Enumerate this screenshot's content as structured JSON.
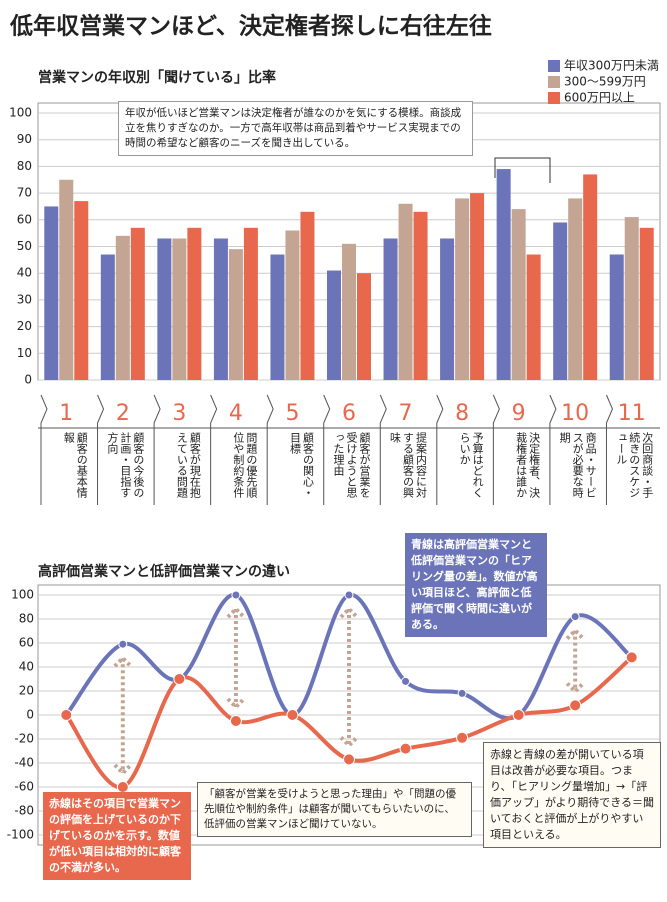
{
  "title": "低年収営業マンほど、決定権者探しに右往左往",
  "chart_data": [
    {
      "type": "bar",
      "title": "営業マンの年収別「聞けている」比率",
      "categories": [
        1,
        2,
        3,
        4,
        5,
        6,
        7,
        8,
        9,
        10,
        11
      ],
      "category_descriptions": [
        "顧客の基本情報",
        "顧客の今後の計画・目指す方向",
        "顧客が現在抱えている問題",
        "問題の優先順位や制約条件",
        "顧客の関心・目標",
        "顧客が営業を受けようと思った理由",
        "提案内容に対する顧客の興味",
        "予算はどれくらいか",
        "決定権者、決裁権者は誰か",
        "商品・サービスが必要な時期",
        "次回商談・手続きのスケジュール"
      ],
      "series": [
        {
          "name": "年収300万円未満",
          "color": "#6b74b8",
          "values": [
            65,
            47,
            53,
            53,
            47,
            41,
            53,
            53,
            79,
            59,
            47
          ]
        },
        {
          "name": "300～599万円",
          "color": "#c4a493",
          "values": [
            75,
            54,
            53,
            49,
            56,
            51,
            66,
            68,
            64,
            68,
            61
          ]
        },
        {
          "name": "600万円以上",
          "color": "#e8684e",
          "values": [
            67,
            57,
            57,
            57,
            63,
            40,
            63,
            70,
            47,
            77,
            57
          ]
        }
      ],
      "ylim": [
        0,
        100
      ],
      "yticks": [
        0,
        10,
        20,
        30,
        40,
        50,
        60,
        70,
        80,
        90,
        100
      ],
      "grid": true,
      "legend": "top-right",
      "annotations": [
        "年収が低いほど営業マンは決定権者が誰なのかを気にする模様。商談成立を焦りすぎなのか。一方で高年収帯は商品到着やサービス実現までの時間の希望など顧客のニーズを聞き出している。"
      ]
    },
    {
      "type": "line",
      "title": "高評価営業マンと低評価営業マンの違い",
      "x": [
        1,
        2,
        3,
        4,
        5,
        6,
        7,
        8,
        9,
        10,
        11
      ],
      "xlim": [
        0.5,
        11.5
      ],
      "series": [
        {
          "color": "#6b74b8",
          "values": [
            0,
            59,
            30,
            100,
            0,
            100,
            28,
            18,
            0,
            82,
            48
          ]
        },
        {
          "color": "#e8684e",
          "values": [
            0,
            -60,
            30,
            -5,
            0,
            -37,
            -28,
            -19,
            0,
            8,
            48
          ]
        }
      ],
      "ylim": [
        -100,
        100
      ],
      "yticks": [
        -100,
        -80,
        -60,
        -40,
        -20,
        0,
        20,
        40,
        60,
        80,
        100
      ],
      "grid": true,
      "annotations": [
        "青線は高評価営業マンと低評価営業マンの「ヒアリング量の差」。数値が高い項目ほど、高評価と低評価で聞く時間に違いがある。",
        "赤線はその項目で営業マンの評価を上げているのか下げているのかを示す。数値が低い項目は相対的に顧客の不満が多い。",
        "「顧客が営業を受けようと思った理由」や「問題の優先順位や制約条件」は顧客が聞いてもらいたいのに、低評価の営業マンほど聞けていない。",
        "赤線と青線の差が開いている項目は改善が必要な項目。つまり、「ヒアリング量増加」→「評価アップ」がより期待できる＝聞いておくと評価が上がりやすい項目といえる。"
      ]
    }
  ]
}
